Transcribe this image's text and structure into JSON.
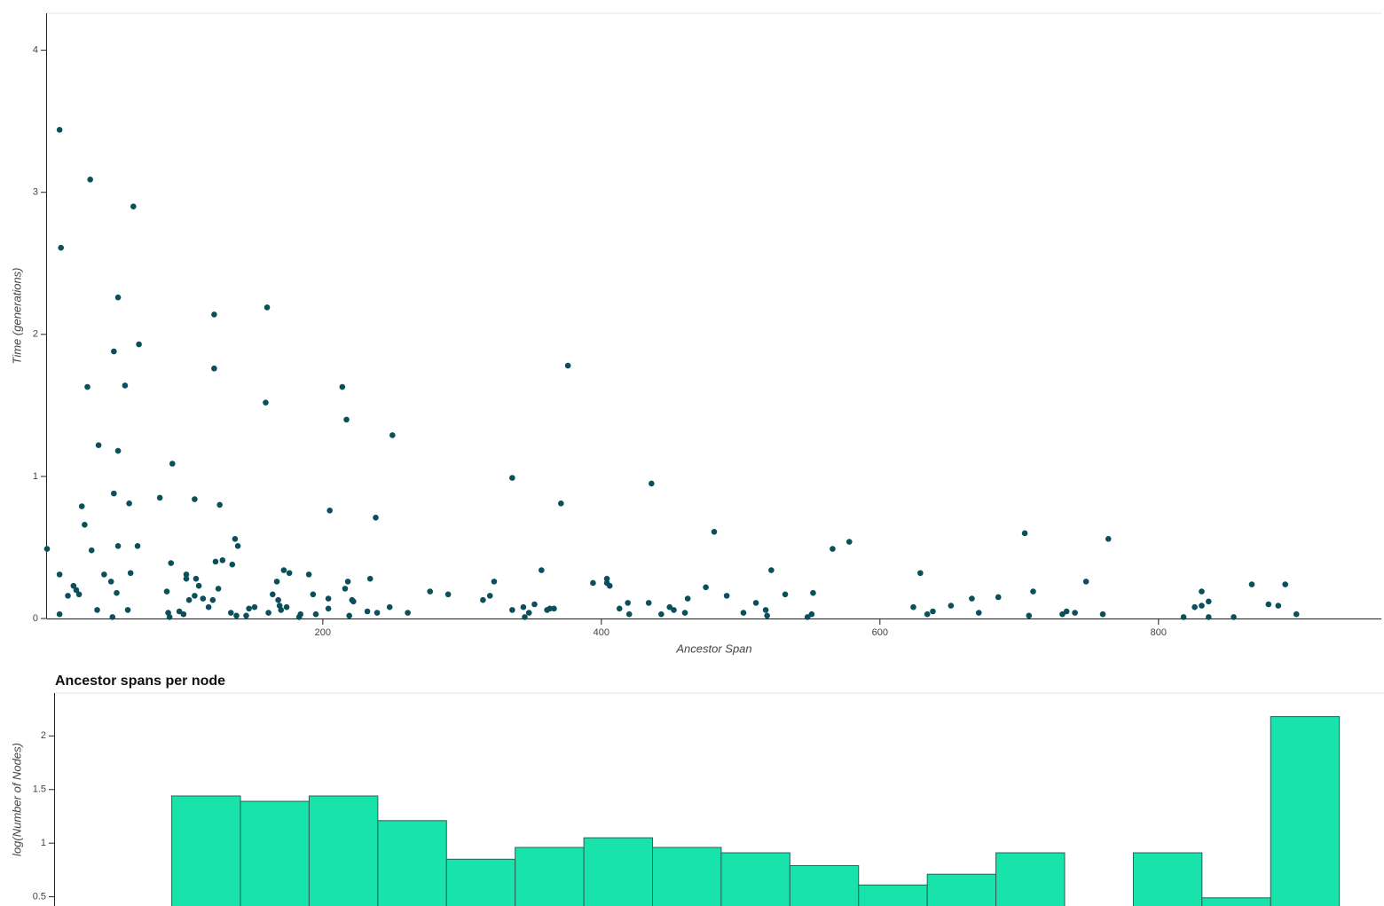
{
  "chart_data": [
    {
      "type": "scatter",
      "xlabel": "Ancestor Span",
      "ylabel": "Time (generations)",
      "color": "#0b4f5c",
      "xlim": [
        2,
        960
      ],
      "ylim": [
        0,
        4.26
      ],
      "xticks": [
        200,
        400,
        600,
        800
      ],
      "yticks": [
        0,
        1,
        2,
        3,
        4
      ],
      "x": [
        2,
        11,
        12,
        11,
        11,
        17,
        21,
        23,
        25,
        27,
        29,
        31,
        33,
        34,
        38,
        39,
        43,
        48,
        49,
        50,
        50,
        52,
        53,
        53,
        53,
        58,
        60,
        61,
        62,
        64,
        67,
        68,
        83,
        88,
        89,
        90,
        91,
        92,
        97,
        100,
        102,
        102,
        104,
        108,
        108,
        109,
        111,
        114,
        118,
        121,
        122,
        122,
        123,
        125,
        126,
        128,
        134,
        135,
        137,
        138,
        139,
        145,
        147,
        151,
        159,
        160,
        161,
        164,
        167,
        168,
        169,
        170,
        172,
        174,
        176,
        183,
        184,
        190,
        193,
        195,
        204,
        204,
        205,
        214,
        216,
        217,
        218,
        219,
        221,
        222,
        232,
        234,
        238,
        239,
        248,
        250,
        261,
        277,
        290,
        315,
        320,
        323,
        336,
        336,
        344,
        345,
        348,
        352,
        357,
        361,
        363,
        366,
        371,
        376,
        394,
        404,
        404,
        406,
        413,
        419,
        420,
        434,
        436,
        443,
        449,
        452,
        460,
        462,
        475,
        481,
        490,
        502,
        511,
        518,
        519,
        522,
        532,
        548,
        551,
        552,
        566,
        578,
        624,
        629,
        634,
        638,
        651,
        666,
        671,
        685,
        704,
        707,
        710,
        731,
        734,
        740,
        748,
        760,
        764,
        818,
        826,
        831,
        831,
        836,
        836,
        854,
        867,
        879,
        886,
        891,
        899
      ],
      "values": [
        0.49,
        3.44,
        2.61,
        0.03,
        0.31,
        0.16,
        0.23,
        0.2,
        0.17,
        0.79,
        0.66,
        1.63,
        3.09,
        0.48,
        0.06,
        1.22,
        0.31,
        0.26,
        0.01,
        0.88,
        1.88,
        0.18,
        2.26,
        1.18,
        0.51,
        1.64,
        0.06,
        0.81,
        0.32,
        2.9,
        0.51,
        1.93,
        0.85,
        0.19,
        0.04,
        0.01,
        0.39,
        1.09,
        0.05,
        0.03,
        0.31,
        0.28,
        0.13,
        0.16,
        0.84,
        0.28,
        0.23,
        0.14,
        0.08,
        0.13,
        2.14,
        1.76,
        0.4,
        0.21,
        0.8,
        0.41,
        0.04,
        0.38,
        0.56,
        0.02,
        0.51,
        0.02,
        0.07,
        0.08,
        1.52,
        2.19,
        0.04,
        0.17,
        0.26,
        0.13,
        0.09,
        0.06,
        0.34,
        0.08,
        0.32,
        0.01,
        0.03,
        0.31,
        0.17,
        0.03,
        0.14,
        0.07,
        0.76,
        1.63,
        0.21,
        1.4,
        0.26,
        0.02,
        0.13,
        0.12,
        0.05,
        0.28,
        0.71,
        0.04,
        0.08,
        1.29,
        0.04,
        0.19,
        0.17,
        0.13,
        0.16,
        0.26,
        0.99,
        0.06,
        0.08,
        0.01,
        0.04,
        0.1,
        0.34,
        0.06,
        0.07,
        0.07,
        0.81,
        1.78,
        0.25,
        0.28,
        0.25,
        0.23,
        0.07,
        0.11,
        0.03,
        0.11,
        0.95,
        0.03,
        0.08,
        0.06,
        0.04,
        0.14,
        0.22,
        0.61,
        0.16,
        0.04,
        0.11,
        0.06,
        0.02,
        0.34,
        0.17,
        0.01,
        0.03,
        0.18,
        0.49,
        0.54,
        0.08,
        0.32,
        0.03,
        0.05,
        0.09,
        0.14,
        0.04,
        0.15,
        0.6,
        0.02,
        0.19,
        0.03,
        0.05,
        0.04,
        0.26,
        0.03,
        0.56,
        0.01,
        0.08,
        0.19,
        0.09,
        0.12,
        0.01,
        0.01,
        0.24,
        0.1,
        0.09,
        0.24,
        0.03
      ]
    },
    {
      "type": "histogram",
      "title": "Ancestor spans per node",
      "ylabel": "log(Number of Nodes)",
      "color": "#17e3ab",
      "xlim": [
        -1.7,
        17.65
      ],
      "ylim": [
        0,
        2.4
      ],
      "yticks": [
        0.5,
        1,
        1.5,
        2
      ],
      "bins": [
        0,
        1,
        2,
        3,
        4,
        5,
        6,
        7,
        8,
        9,
        10,
        11,
        12,
        13,
        14,
        15,
        16,
        17
      ],
      "values": [
        1.44,
        1.39,
        1.44,
        1.21,
        0.85,
        0.96,
        1.05,
        0.96,
        0.91,
        0.79,
        0.61,
        0.71,
        0.91,
        0,
        0.91,
        0.49,
        2.18
      ]
    }
  ]
}
